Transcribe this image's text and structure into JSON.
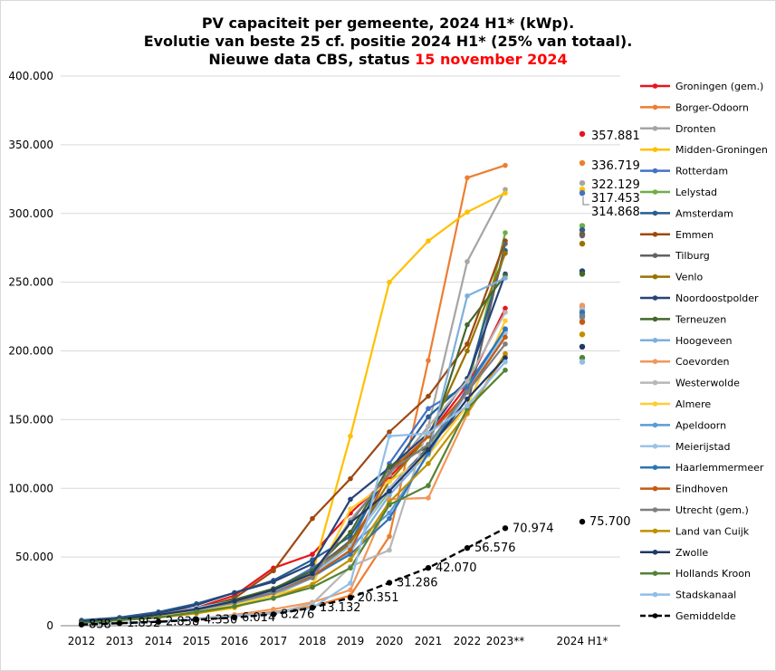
{
  "chart_data": {
    "type": "line",
    "title_lines": [
      "PV capaciteit  per gemeente, 2024 H1* (kWp).",
      "Evolutie  van beste 25 cf. positie  2024 H1* (25% van totaal)."
    ],
    "title_line3_prefix": "Nieuwe data CBS, status ",
    "title_line3_highlight": "15 november 2024",
    "colors": {
      "highlight": "#ff0000",
      "gridline": "#d9d9d9",
      "axis": "#7f7f7f"
    },
    "ylim": [
      0,
      400000
    ],
    "grid": true,
    "legend_position": "right",
    "y_ticks": [
      {
        "value": 0,
        "label": "0"
      },
      {
        "value": 50000,
        "label": "50.000"
      },
      {
        "value": 100000,
        "label": "100.000"
      },
      {
        "value": 150000,
        "label": "150.000"
      },
      {
        "value": 200000,
        "label": "200.000"
      },
      {
        "value": 250000,
        "label": "250.000"
      },
      {
        "value": 300000,
        "label": "300.000"
      },
      {
        "value": 350000,
        "label": "350.000"
      },
      {
        "value": 400000,
        "label": "400.000"
      }
    ],
    "categories": [
      "2012",
      "2013",
      "2014",
      "2015",
      "2016",
      "2017",
      "2018",
      "2019",
      "2020",
      "2021",
      "2022",
      "2023**",
      "2024 H1*"
    ],
    "series": [
      {
        "name": "Groningen (gem.)",
        "color": "#e8141b",
        "values": [
          3000,
          5000,
          9000,
          13000,
          22000,
          42000,
          52000,
          82000,
          108000,
          138000,
          175000,
          231000,
          357881
        ]
      },
      {
        "name": "Borger-Odoorn",
        "color": "#ed7d31",
        "values": [
          1000,
          2000,
          3000,
          5000,
          7000,
          10000,
          14000,
          22000,
          65000,
          193000,
          326000,
          335000,
          336719
        ]
      },
      {
        "name": "Dronten",
        "color": "#a5a5a5",
        "values": [
          2000,
          4000,
          7000,
          11000,
          16000,
          22000,
          35000,
          77000,
          110000,
          145000,
          265000,
          317453,
          322129
        ]
      },
      {
        "name": "Midden-Groningen",
        "color": "#ffc000",
        "values": [
          2000,
          4000,
          6000,
          9000,
          13000,
          24000,
          38000,
          138000,
          250000,
          280000,
          301000,
          314868,
          317453
        ]
      },
      {
        "name": "Rotterdam",
        "color": "#4472c4",
        "values": [
          3000,
          5000,
          8000,
          12000,
          18000,
          26000,
          42000,
          60000,
          118000,
          158000,
          175000,
          215000,
          314868
        ]
      },
      {
        "name": "Lelystad",
        "color": "#70ad47",
        "values": [
          2000,
          4000,
          7000,
          11000,
          16000,
          23000,
          35000,
          60000,
          98000,
          130000,
          172000,
          286000,
          291000
        ]
      },
      {
        "name": "Amsterdam",
        "color": "#255e91",
        "values": [
          4000,
          6000,
          10000,
          16000,
          24000,
          33000,
          48000,
          65000,
          112000,
          152000,
          178000,
          273000,
          288000
        ]
      },
      {
        "name": "Emmen",
        "color": "#9e480e",
        "values": [
          2000,
          4000,
          7000,
          12000,
          20000,
          40000,
          78000,
          107000,
          141000,
          167000,
          205000,
          280000,
          285000
        ]
      },
      {
        "name": "Tilburg",
        "color": "#636363",
        "values": [
          3000,
          5000,
          8000,
          12000,
          18000,
          26000,
          40000,
          62000,
          100000,
          130000,
          160000,
          278000,
          284000
        ]
      },
      {
        "name": "Venlo",
        "color": "#997300",
        "values": [
          2000,
          4000,
          7000,
          11000,
          17000,
          25000,
          38000,
          60000,
          105000,
          138000,
          200000,
          271000,
          278000
        ]
      },
      {
        "name": "Noordoostpolder",
        "color": "#264478",
        "values": [
          3000,
          5000,
          9000,
          15000,
          24000,
          32000,
          45000,
          92000,
          115000,
          140000,
          180000,
          256000,
          258000
        ]
      },
      {
        "name": "Terneuzen",
        "color": "#43682b",
        "values": [
          3000,
          5000,
          8000,
          13000,
          19000,
          27000,
          40000,
          68000,
          116000,
          130000,
          219000,
          255000,
          256000
        ]
      },
      {
        "name": "Hoogeveen",
        "color": "#7cafdd",
        "values": [
          2000,
          4000,
          7000,
          11000,
          16000,
          23000,
          35000,
          54000,
          95000,
          126000,
          240000,
          253000,
          232000
        ]
      },
      {
        "name": "Coevorden",
        "color": "#f1975a",
        "values": [
          1000,
          2000,
          3000,
          5000,
          8000,
          12000,
          17000,
          26000,
          92000,
          93000,
          154000,
          197000,
          233000
        ]
      },
      {
        "name": "Westerwolde",
        "color": "#b7b7b7",
        "values": [
          1000,
          2000,
          3000,
          5000,
          7000,
          9000,
          16000,
          43000,
          55000,
          145000,
          178000,
          228000,
          230000
        ]
      },
      {
        "name": "Almere",
        "color": "#ffcd33",
        "values": [
          2000,
          4000,
          7000,
          10000,
          15000,
          22000,
          30000,
          85000,
          105000,
          124000,
          160000,
          222000,
          212000
        ]
      },
      {
        "name": "Apeldoorn",
        "color": "#5b9bd5",
        "values": [
          3000,
          5000,
          8000,
          12000,
          17000,
          24000,
          38000,
          58000,
          82000,
          125000,
          170000,
          216000,
          226000
        ]
      },
      {
        "name": "Meierijstad",
        "color": "#9dc3e6",
        "values": [
          3000,
          5000,
          8000,
          13000,
          18000,
          25000,
          37000,
          58000,
          100000,
          128000,
          170000,
          213000,
          223000
        ]
      },
      {
        "name": "Haarlemmermeer",
        "color": "#2e75b6",
        "values": [
          3000,
          5000,
          8000,
          12000,
          17000,
          24000,
          36000,
          52000,
          78000,
          126000,
          173000,
          216000,
          228000
        ]
      },
      {
        "name": "Eindhoven",
        "color": "#c55a11",
        "values": [
          3000,
          5000,
          8000,
          12000,
          17000,
          24000,
          36000,
          55000,
          112000,
          138000,
          170000,
          210000,
          221000
        ]
      },
      {
        "name": "Utrecht (gem.)",
        "color": "#7f7f7f",
        "values": [
          3000,
          5000,
          8000,
          12000,
          17000,
          24000,
          35000,
          75000,
          112000,
          132000,
          170000,
          205000,
          225000
        ]
      },
      {
        "name": "Land van Cuijk",
        "color": "#bf9000",
        "values": [
          2000,
          4000,
          6000,
          9000,
          14000,
          20000,
          30000,
          48000,
          90000,
          118000,
          155000,
          198000,
          212000
        ]
      },
      {
        "name": "Zwolle",
        "color": "#203864",
        "values": [
          3000,
          5000,
          8000,
          12000,
          18000,
          26000,
          38000,
          75000,
          98000,
          128000,
          165000,
          195000,
          203000
        ]
      },
      {
        "name": "Hollands Kroon",
        "color": "#548235",
        "values": [
          2000,
          4000,
          6000,
          10000,
          14000,
          20000,
          28000,
          42000,
          88000,
          102000,
          158000,
          186000,
          195000
        ]
      },
      {
        "name": "Stadskanaal",
        "color": "#8fbfe8",
        "values": [
          1000,
          2000,
          3000,
          5000,
          7000,
          9000,
          13000,
          31000,
          138000,
          140000,
          160000,
          192000,
          192000
        ]
      }
    ],
    "average": {
      "name": "Gemiddelde",
      "color": "#000000",
      "values": [
        838,
        1852,
        2838,
        4330,
        6014,
        8276,
        13132,
        20351,
        31286,
        42070,
        56576,
        70974,
        75700
      ],
      "labels": [
        "838",
        "1.852",
        "2.838",
        "4.330",
        "6.014",
        "8.276",
        "13.132",
        "20.351",
        "31.286",
        "42.070",
        "56.576",
        "70.974",
        "75.700"
      ]
    },
    "annotations": [
      {
        "label": "357.881",
        "value": 357881,
        "color": "#000000"
      },
      {
        "label": "336.719",
        "value": 336719,
        "color": "#000000"
      },
      {
        "label": "322.129",
        "value": 322129,
        "color": "#000000"
      },
      {
        "label": "317.453",
        "value": 317453,
        "color": "#000000"
      },
      {
        "label": "314.868",
        "value": 314868,
        "color": "#000000"
      }
    ]
  }
}
